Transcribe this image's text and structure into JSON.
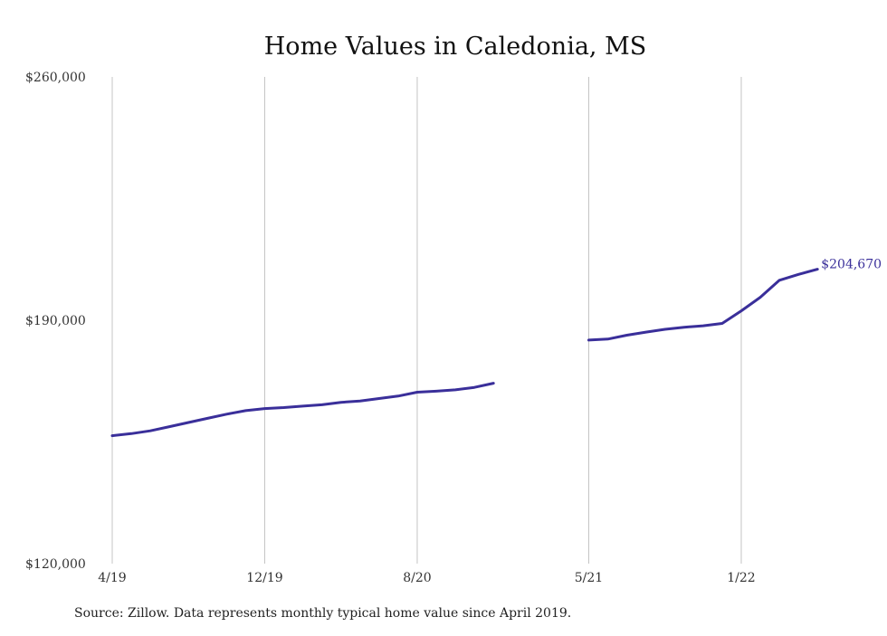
{
  "chart_data": {
    "type": "line",
    "title": "Home Values in Caledonia, MS",
    "xlabel": "",
    "ylabel": "",
    "ylim": [
      120000,
      260000
    ],
    "yticks": [
      "$120,000",
      "$190,000",
      "$260,000"
    ],
    "xticks": [
      "4/19",
      "12/19",
      "8/20",
      "5/21",
      "1/22"
    ],
    "grid": "vertical",
    "end_label": "$204,670",
    "colors": {
      "line": "#3a2f9a",
      "end_label": "#3a2f9a"
    },
    "series": [
      {
        "x": [
          "2019-04",
          "2019-05",
          "2019-06",
          "2019-07",
          "2019-08",
          "2019-09",
          "2019-10",
          "2019-11",
          "2019-12",
          "2020-01",
          "2020-02",
          "2020-03",
          "2020-04",
          "2020-05",
          "2020-06",
          "2020-07",
          "2020-08",
          "2020-09",
          "2020-10",
          "2020-11",
          "2020-12",
          "2021-01",
          "2021-02",
          "2021-03",
          "2021-04",
          "2021-05",
          "2021-06",
          "2021-07",
          "2021-08",
          "2021-09",
          "2021-10",
          "2021-11",
          "2021-12",
          "2022-01",
          "2022-02",
          "2022-03",
          "2022-04",
          "2022-05"
        ],
        "y": [
          156800,
          157400,
          158200,
          159400,
          160600,
          161800,
          163000,
          164000,
          164600,
          164900,
          165300,
          165700,
          166400,
          166800,
          167500,
          168200,
          169300,
          169600,
          170000,
          170700,
          171900,
          null,
          null,
          null,
          null,
          184300,
          184600,
          185700,
          186600,
          187400,
          188000,
          188400,
          189100,
          192700,
          196600,
          201500,
          203200,
          204670
        ]
      }
    ]
  },
  "source_note": "Source: Zillow. Data represents monthly typical home value since April 2019."
}
